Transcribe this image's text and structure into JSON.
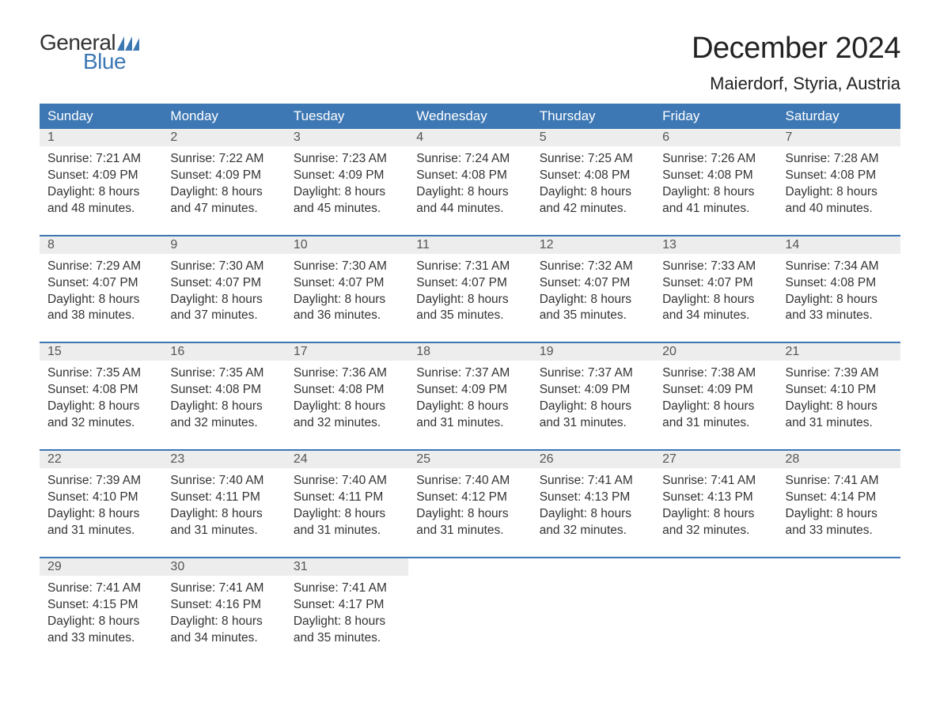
{
  "logo": {
    "word1": "General",
    "word2": "Blue"
  },
  "title": "December 2024",
  "location": "Maierdorf, Styria, Austria",
  "columns": [
    "Sunday",
    "Monday",
    "Tuesday",
    "Wednesday",
    "Thursday",
    "Friday",
    "Saturday"
  ],
  "colors": {
    "header_bg": "#3d78b4",
    "header_text": "#ffffff",
    "daynum_bg": "#ededed",
    "border": "#3d78b4",
    "text": "#333333",
    "logo_blue": "#3d78b4",
    "background": "#ffffff"
  },
  "typography": {
    "title_fontsize": 38,
    "location_fontsize": 22,
    "header_fontsize": 17,
    "body_fontsize": 15.5,
    "logo_fontsize": 28
  },
  "labels": {
    "sunrise": "Sunrise: ",
    "sunset": "Sunset: ",
    "daylight": "Daylight: "
  },
  "weeks": [
    [
      {
        "n": "1",
        "sunrise": "7:21 AM",
        "sunset": "4:09 PM",
        "daylight": "8 hours and 48 minutes."
      },
      {
        "n": "2",
        "sunrise": "7:22 AM",
        "sunset": "4:09 PM",
        "daylight": "8 hours and 47 minutes."
      },
      {
        "n": "3",
        "sunrise": "7:23 AM",
        "sunset": "4:09 PM",
        "daylight": "8 hours and 45 minutes."
      },
      {
        "n": "4",
        "sunrise": "7:24 AM",
        "sunset": "4:08 PM",
        "daylight": "8 hours and 44 minutes."
      },
      {
        "n": "5",
        "sunrise": "7:25 AM",
        "sunset": "4:08 PM",
        "daylight": "8 hours and 42 minutes."
      },
      {
        "n": "6",
        "sunrise": "7:26 AM",
        "sunset": "4:08 PM",
        "daylight": "8 hours and 41 minutes."
      },
      {
        "n": "7",
        "sunrise": "7:28 AM",
        "sunset": "4:08 PM",
        "daylight": "8 hours and 40 minutes."
      }
    ],
    [
      {
        "n": "8",
        "sunrise": "7:29 AM",
        "sunset": "4:07 PM",
        "daylight": "8 hours and 38 minutes."
      },
      {
        "n": "9",
        "sunrise": "7:30 AM",
        "sunset": "4:07 PM",
        "daylight": "8 hours and 37 minutes."
      },
      {
        "n": "10",
        "sunrise": "7:30 AM",
        "sunset": "4:07 PM",
        "daylight": "8 hours and 36 minutes."
      },
      {
        "n": "11",
        "sunrise": "7:31 AM",
        "sunset": "4:07 PM",
        "daylight": "8 hours and 35 minutes."
      },
      {
        "n": "12",
        "sunrise": "7:32 AM",
        "sunset": "4:07 PM",
        "daylight": "8 hours and 35 minutes."
      },
      {
        "n": "13",
        "sunrise": "7:33 AM",
        "sunset": "4:07 PM",
        "daylight": "8 hours and 34 minutes."
      },
      {
        "n": "14",
        "sunrise": "7:34 AM",
        "sunset": "4:08 PM",
        "daylight": "8 hours and 33 minutes."
      }
    ],
    [
      {
        "n": "15",
        "sunrise": "7:35 AM",
        "sunset": "4:08 PM",
        "daylight": "8 hours and 32 minutes."
      },
      {
        "n": "16",
        "sunrise": "7:35 AM",
        "sunset": "4:08 PM",
        "daylight": "8 hours and 32 minutes."
      },
      {
        "n": "17",
        "sunrise": "7:36 AM",
        "sunset": "4:08 PM",
        "daylight": "8 hours and 32 minutes."
      },
      {
        "n": "18",
        "sunrise": "7:37 AM",
        "sunset": "4:09 PM",
        "daylight": "8 hours and 31 minutes."
      },
      {
        "n": "19",
        "sunrise": "7:37 AM",
        "sunset": "4:09 PM",
        "daylight": "8 hours and 31 minutes."
      },
      {
        "n": "20",
        "sunrise": "7:38 AM",
        "sunset": "4:09 PM",
        "daylight": "8 hours and 31 minutes."
      },
      {
        "n": "21",
        "sunrise": "7:39 AM",
        "sunset": "4:10 PM",
        "daylight": "8 hours and 31 minutes."
      }
    ],
    [
      {
        "n": "22",
        "sunrise": "7:39 AM",
        "sunset": "4:10 PM",
        "daylight": "8 hours and 31 minutes."
      },
      {
        "n": "23",
        "sunrise": "7:40 AM",
        "sunset": "4:11 PM",
        "daylight": "8 hours and 31 minutes."
      },
      {
        "n": "24",
        "sunrise": "7:40 AM",
        "sunset": "4:11 PM",
        "daylight": "8 hours and 31 minutes."
      },
      {
        "n": "25",
        "sunrise": "7:40 AM",
        "sunset": "4:12 PM",
        "daylight": "8 hours and 31 minutes."
      },
      {
        "n": "26",
        "sunrise": "7:41 AM",
        "sunset": "4:13 PM",
        "daylight": "8 hours and 32 minutes."
      },
      {
        "n": "27",
        "sunrise": "7:41 AM",
        "sunset": "4:13 PM",
        "daylight": "8 hours and 32 minutes."
      },
      {
        "n": "28",
        "sunrise": "7:41 AM",
        "sunset": "4:14 PM",
        "daylight": "8 hours and 33 minutes."
      }
    ],
    [
      {
        "n": "29",
        "sunrise": "7:41 AM",
        "sunset": "4:15 PM",
        "daylight": "8 hours and 33 minutes."
      },
      {
        "n": "30",
        "sunrise": "7:41 AM",
        "sunset": "4:16 PM",
        "daylight": "8 hours and 34 minutes."
      },
      {
        "n": "31",
        "sunrise": "7:41 AM",
        "sunset": "4:17 PM",
        "daylight": "8 hours and 35 minutes."
      },
      null,
      null,
      null,
      null
    ]
  ]
}
